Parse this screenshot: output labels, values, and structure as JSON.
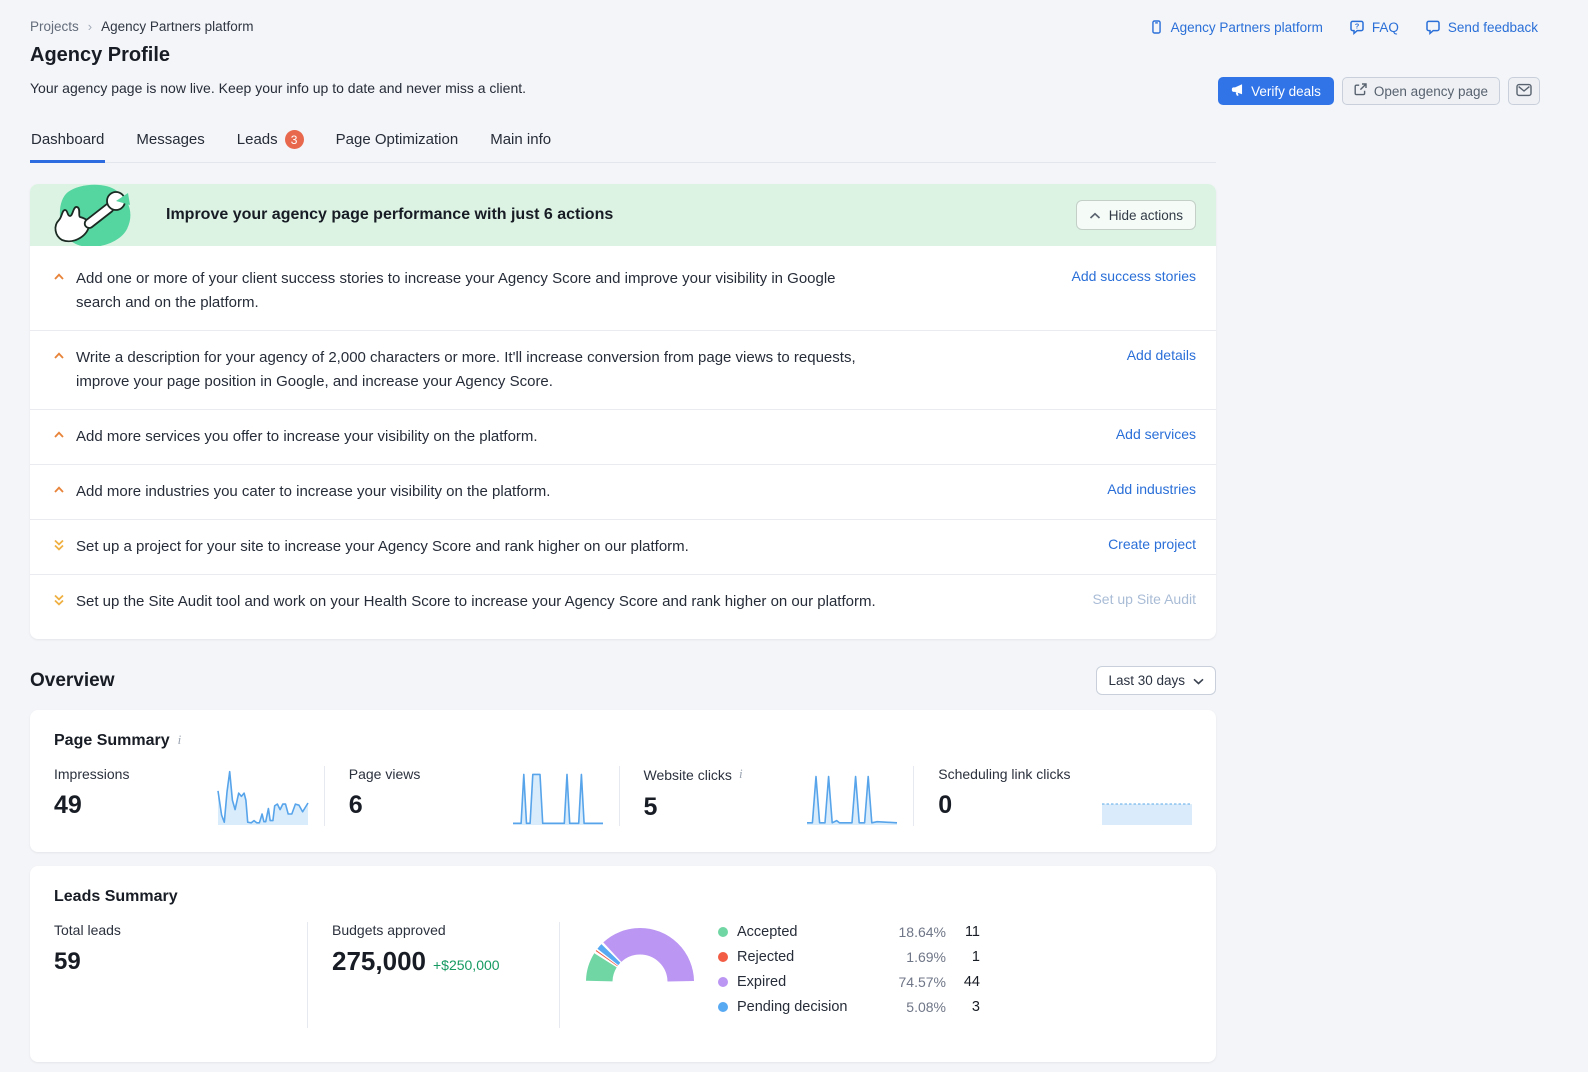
{
  "breadcrumb": {
    "root": "Projects",
    "current": "Agency Partners platform"
  },
  "header": {
    "title": "Agency Profile",
    "subtitle": "Your agency page is now live. Keep your info up to date and never miss a client.",
    "top_links": [
      {
        "label": "Agency Partners platform",
        "icon": "device-icon"
      },
      {
        "label": "FAQ",
        "icon": "chat-question-icon"
      },
      {
        "label": "Send feedback",
        "icon": "chat-bubble-icon"
      }
    ],
    "verify_deals_label": "Verify deals",
    "open_agency_page_label": "Open agency page"
  },
  "tabs": [
    {
      "label": "Dashboard",
      "active": true
    },
    {
      "label": "Messages"
    },
    {
      "label": "Leads",
      "badge": "3"
    },
    {
      "label": "Page Optimization"
    },
    {
      "label": "Main info"
    }
  ],
  "actions_panel": {
    "title": "Improve your agency page performance with just 6 actions",
    "hide_button_label": "Hide actions",
    "items": [
      {
        "icon": "chevron-up-icon",
        "text": "Add one or more of your client success stories to increase your Agency Score and improve your visibility in Google search and on the platform.",
        "link": "Add success stories",
        "link_disabled": false
      },
      {
        "icon": "chevron-up-icon",
        "text": "Write a description for your agency of 2,000 characters or more. It'll increase conversion from page views to requests, improve your page position in Google, and increase your Agency Score.",
        "link": "Add details",
        "link_disabled": false
      },
      {
        "icon": "chevron-up-icon",
        "text": "Add more services you offer to increase your visibility on the platform.",
        "link": "Add services",
        "link_disabled": false
      },
      {
        "icon": "chevron-up-icon",
        "text": "Add more industries you cater to increase your visibility on the platform.",
        "link": "Add industries",
        "link_disabled": false
      },
      {
        "icon": "double-chevron-down-icon",
        "text": "Set up a project for your site to increase your Agency Score and rank higher on our platform.",
        "link": "Create project",
        "link_disabled": false
      },
      {
        "icon": "double-chevron-down-icon",
        "text": "Set up the Site Audit tool and work on your Health Score to increase your Agency Score and rank higher on our platform.",
        "link": "Set up Site Audit",
        "link_disabled": true
      }
    ]
  },
  "overview": {
    "title": "Overview",
    "date_range": "Last 30 days",
    "page_summary": {
      "title": "Page Summary",
      "metrics": [
        {
          "label": "Impressions",
          "value": "49"
        },
        {
          "label": "Page views",
          "value": "6"
        },
        {
          "label": "Website clicks",
          "value": "5"
        },
        {
          "label": "Scheduling link clicks",
          "value": "0"
        }
      ]
    },
    "leads_summary": {
      "title": "Leads Summary",
      "total_leads": {
        "label": "Total leads",
        "value": "59"
      },
      "budgets": {
        "label": "Budgets approved",
        "value": "275,000",
        "delta": "+$250,000",
        "delta_color": "#169a62"
      },
      "legend": [
        {
          "label": "Accepted",
          "percent": "18.64%",
          "count": "11",
          "color": "#70d6a4"
        },
        {
          "label": "Rejected",
          "percent": "1.69%",
          "count": "1",
          "color": "#f25c44"
        },
        {
          "label": "Expired",
          "percent": "74.57%",
          "count": "44",
          "color": "#bb96f2"
        },
        {
          "label": "Pending decision",
          "percent": "5.08%",
          "count": "3",
          "color": "#57a9f2"
        }
      ]
    }
  },
  "chart_data": {
    "sparklines": {
      "impressions": {
        "type": "area",
        "stroke": "#57a4ea",
        "fill": "#d9ecfc",
        "points": [
          [
            0,
            62
          ],
          [
            4,
            18
          ],
          [
            7,
            5
          ],
          [
            10,
            60
          ],
          [
            13,
            97
          ],
          [
            16,
            45
          ],
          [
            19,
            28
          ],
          [
            23,
            58
          ],
          [
            26,
            52
          ],
          [
            29,
            58
          ],
          [
            31,
            45
          ],
          [
            33,
            5
          ],
          [
            37,
            4
          ],
          [
            40,
            8
          ],
          [
            43,
            4
          ],
          [
            46,
            4
          ],
          [
            49,
            20
          ],
          [
            51,
            6
          ],
          [
            53,
            6
          ],
          [
            56,
            30
          ],
          [
            58,
            8
          ],
          [
            61,
            8
          ],
          [
            63,
            35
          ],
          [
            66,
            38
          ],
          [
            69,
            28
          ],
          [
            72,
            38
          ],
          [
            75,
            38
          ],
          [
            78,
            20
          ],
          [
            82,
            20
          ],
          [
            86,
            38
          ],
          [
            90,
            36
          ],
          [
            94,
            24
          ],
          [
            100,
            40
          ]
        ]
      },
      "page_views": {
        "type": "area",
        "stroke": "#57a4ea",
        "fill": "#d9ecfc",
        "points": [
          [
            0,
            3
          ],
          [
            9,
            3
          ],
          [
            12,
            92
          ],
          [
            15,
            3
          ],
          [
            19,
            3
          ],
          [
            22,
            92
          ],
          [
            30,
            92
          ],
          [
            33,
            3
          ],
          [
            57,
            3
          ],
          [
            60,
            92
          ],
          [
            63,
            3
          ],
          [
            73,
            3
          ],
          [
            76,
            92
          ],
          [
            79,
            3
          ],
          [
            100,
            3
          ]
        ]
      },
      "website_clicks": {
        "type": "area",
        "stroke": "#57a4ea",
        "fill": "#d9ecfc",
        "points": [
          [
            0,
            4
          ],
          [
            6,
            4
          ],
          [
            10,
            88
          ],
          [
            14,
            4
          ],
          [
            20,
            4
          ],
          [
            24,
            88
          ],
          [
            28,
            4
          ],
          [
            33,
            8
          ],
          [
            36,
            4
          ],
          [
            50,
            4
          ],
          [
            54,
            88
          ],
          [
            58,
            4
          ],
          [
            64,
            4
          ],
          [
            68,
            88
          ],
          [
            72,
            4
          ],
          [
            78,
            6
          ],
          [
            100,
            4
          ]
        ]
      },
      "scheduling_link_clicks": {
        "type": "flat-area",
        "level": 38,
        "stroke": "#93c6f1",
        "fill": "#daecfb"
      }
    },
    "donut": {
      "type": "half-donut",
      "title": "Leads Summary breakdown",
      "segments": [
        {
          "label": "Accepted",
          "percent": 18.64,
          "count": 11,
          "color": "#70d6a4"
        },
        {
          "label": "Rejected",
          "percent": 1.69,
          "count": 1,
          "color": "#f0573e"
        },
        {
          "label": "Pending decision",
          "percent": 5.08,
          "count": 3,
          "color": "#57a9f2"
        },
        {
          "label": "Expired",
          "percent": 74.57,
          "count": 44,
          "color": "#bb96f2"
        }
      ]
    }
  }
}
